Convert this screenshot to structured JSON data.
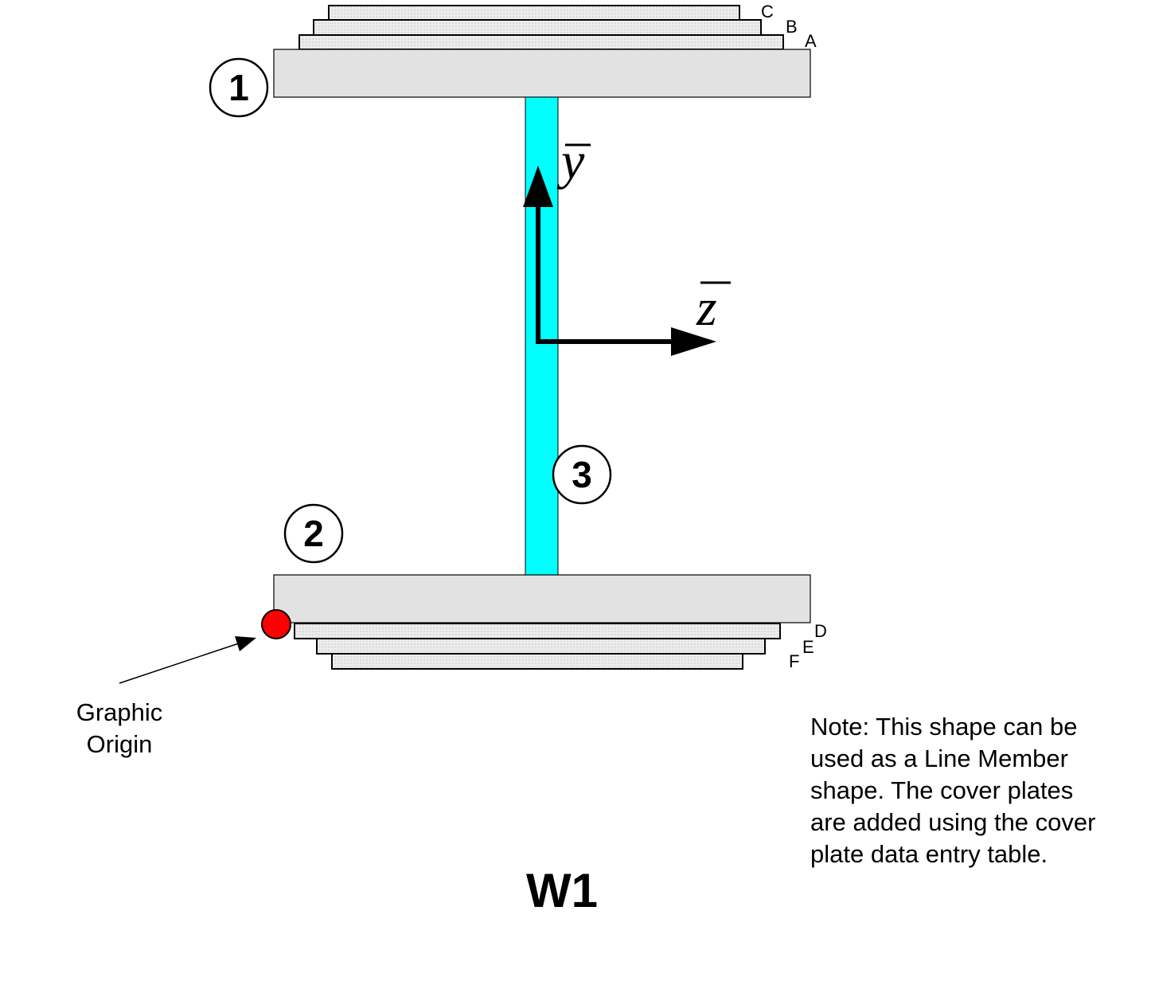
{
  "title": "W1",
  "colors": {
    "flange": "#e2e2e2",
    "web": "#00ffff",
    "cover_plate": "#ececec",
    "origin_marker": "#ff0000",
    "outline": "#000000"
  },
  "top_cover_plates": [
    "A",
    "B",
    "C"
  ],
  "bottom_cover_plates": [
    "D",
    "E",
    "F"
  ],
  "components": {
    "top_flange": "1",
    "bottom_flange": "2",
    "web": "3"
  },
  "axes": {
    "vertical": "y",
    "horizontal": "z"
  },
  "origin": {
    "label_line1": "Graphic",
    "label_line2": "Origin"
  },
  "note": {
    "lines": [
      "Note: This shape can be",
      "used as a Line Member",
      "shape.  The cover plates",
      "are added using the cover",
      "plate data entry table."
    ]
  }
}
